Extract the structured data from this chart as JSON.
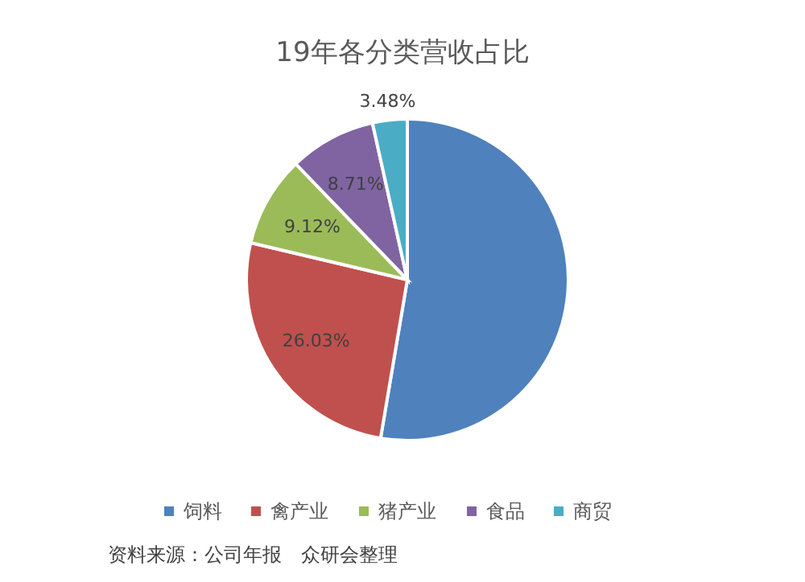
{
  "chart_data": {
    "type": "pie",
    "title": "19年各分类营收占比",
    "categories": [
      "饲料",
      "禽产业",
      "猪产业",
      "食品",
      "商贸"
    ],
    "values": [
      52.66,
      26.03,
      9.12,
      8.71,
      3.48
    ],
    "value_labels": [
      null,
      "26.03%",
      "9.12%",
      "8.71%",
      "3.48%"
    ],
    "colors": [
      "#4f81bd",
      "#c0504d",
      "#9bbb59",
      "#8064a2",
      "#4bacc6"
    ],
    "legend": "bottom",
    "annotations": [
      "资料来源：公司年报　众研会整理"
    ]
  }
}
